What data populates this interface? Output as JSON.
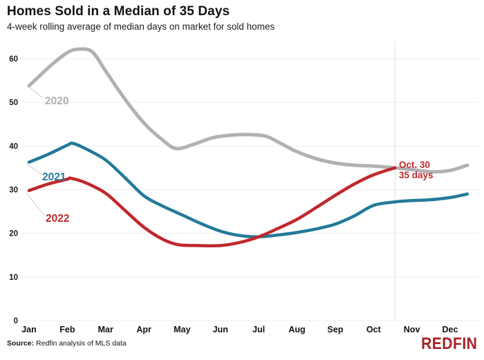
{
  "header": {
    "title": "Homes Sold in a Median of 35 Days",
    "subtitle": "4-week rolling average of median days on market for sold homes"
  },
  "footer": {
    "source_label": "Source:",
    "source_text": "Redfin analysis of MLS data",
    "brand": "REDFIN",
    "brand_color": "#a52227"
  },
  "chart_data": {
    "type": "line",
    "title": "Homes Sold in a Median of 35 Days",
    "subtitle": "4-week rolling average of median days on market for sold homes",
    "x_categories": [
      "Jan",
      "Feb",
      "Mar",
      "Apr",
      "May",
      "Jun",
      "Jul",
      "Aug",
      "Sep",
      "Oct",
      "Nov",
      "Dec"
    ],
    "x_unit": "month_index (0 = Jan, fractional = position within year)",
    "y_ticks": [
      0,
      10,
      20,
      30,
      40,
      50,
      60
    ],
    "ylim": [
      0,
      63
    ],
    "ylabel": "median days on market",
    "grid": "horizontal",
    "legend_position": "inline-labels",
    "marker_line": {
      "x": 9.56,
      "meaning": "Oct. 30"
    },
    "annotation": {
      "line1": "Oct. 30",
      "line2": "35 days",
      "color": "#c0282c",
      "px": 577,
      "py1": 243,
      "py2": 258
    },
    "colors": {
      "grid": "#ececec",
      "marker": "#dcdcdc",
      "leader": "#cccccc",
      "tick_text": "#1a1a1a"
    },
    "series": [
      {
        "name": "2020",
        "color": "#b1b1b1",
        "stroke_width": 5,
        "label": {
          "text": "2020",
          "x": 65,
          "y": 151,
          "leader": [
            44,
            127,
            62,
            142
          ]
        },
        "points": [
          [
            0,
            53.8
          ],
          [
            0.55,
            58.3
          ],
          [
            1,
            61.4
          ],
          [
            1.3,
            62.2
          ],
          [
            1.65,
            61.6
          ],
          [
            2,
            57.2
          ],
          [
            2.5,
            50.8
          ],
          [
            3,
            45.3
          ],
          [
            3.5,
            41.3
          ],
          [
            3.85,
            39.4
          ],
          [
            4.3,
            40.4
          ],
          [
            4.8,
            41.9
          ],
          [
            5.3,
            42.5
          ],
          [
            5.8,
            42.6
          ],
          [
            6.2,
            42.2
          ],
          [
            6.6,
            40.5
          ],
          [
            7,
            38.7
          ],
          [
            7.5,
            37.1
          ],
          [
            8,
            36.1
          ],
          [
            8.5,
            35.6
          ],
          [
            9,
            35.4
          ],
          [
            9.56,
            35.0
          ],
          [
            10,
            34.6
          ],
          [
            10.5,
            34.1
          ],
          [
            11,
            34.4
          ],
          [
            11.45,
            35.6
          ]
        ]
      },
      {
        "name": "2021",
        "color": "#237a99",
        "stroke_width": 4.5,
        "label": {
          "text": "2021",
          "x": 61,
          "y": 261,
          "leader": [
            39,
            237,
            59,
            252
          ]
        },
        "points": [
          [
            0,
            36.3
          ],
          [
            0.5,
            38.1
          ],
          [
            1,
            40.2
          ],
          [
            1.15,
            40.6
          ],
          [
            1.5,
            39.3
          ],
          [
            2,
            36.8
          ],
          [
            2.5,
            32.8
          ],
          [
            3,
            28.6
          ],
          [
            3.5,
            26.2
          ],
          [
            4,
            24.2
          ],
          [
            4.5,
            22.2
          ],
          [
            5,
            20.5
          ],
          [
            5.5,
            19.5
          ],
          [
            6,
            19.2
          ],
          [
            6.5,
            19.6
          ],
          [
            7,
            20.2
          ],
          [
            7.5,
            21.0
          ],
          [
            8,
            22.1
          ],
          [
            8.5,
            24.0
          ],
          [
            9,
            26.4
          ],
          [
            9.56,
            27.2
          ],
          [
            10,
            27.5
          ],
          [
            10.5,
            27.7
          ],
          [
            11,
            28.2
          ],
          [
            11.45,
            29.0
          ]
        ]
      },
      {
        "name": "2022",
        "color": "#c0282c",
        "stroke_width": 4.5,
        "label": {
          "text": "2022",
          "x": 66,
          "y": 321,
          "leader": [
            38,
            279,
            64,
            312
          ]
        },
        "points": [
          [
            0,
            29.8
          ],
          [
            0.5,
            31.3
          ],
          [
            1,
            32.4
          ],
          [
            1.1,
            32.6
          ],
          [
            1.5,
            31.5
          ],
          [
            2,
            29.2
          ],
          [
            2.5,
            25.3
          ],
          [
            3,
            21.4
          ],
          [
            3.5,
            18.6
          ],
          [
            3.9,
            17.4
          ],
          [
            4.4,
            17.2
          ],
          [
            5,
            17.2
          ],
          [
            5.5,
            17.9
          ],
          [
            6,
            19.2
          ],
          [
            6.5,
            21.1
          ],
          [
            7,
            23.2
          ],
          [
            7.5,
            25.9
          ],
          [
            8,
            28.7
          ],
          [
            8.5,
            31.3
          ],
          [
            9,
            33.4
          ],
          [
            9.56,
            35.0
          ]
        ]
      }
    ]
  }
}
